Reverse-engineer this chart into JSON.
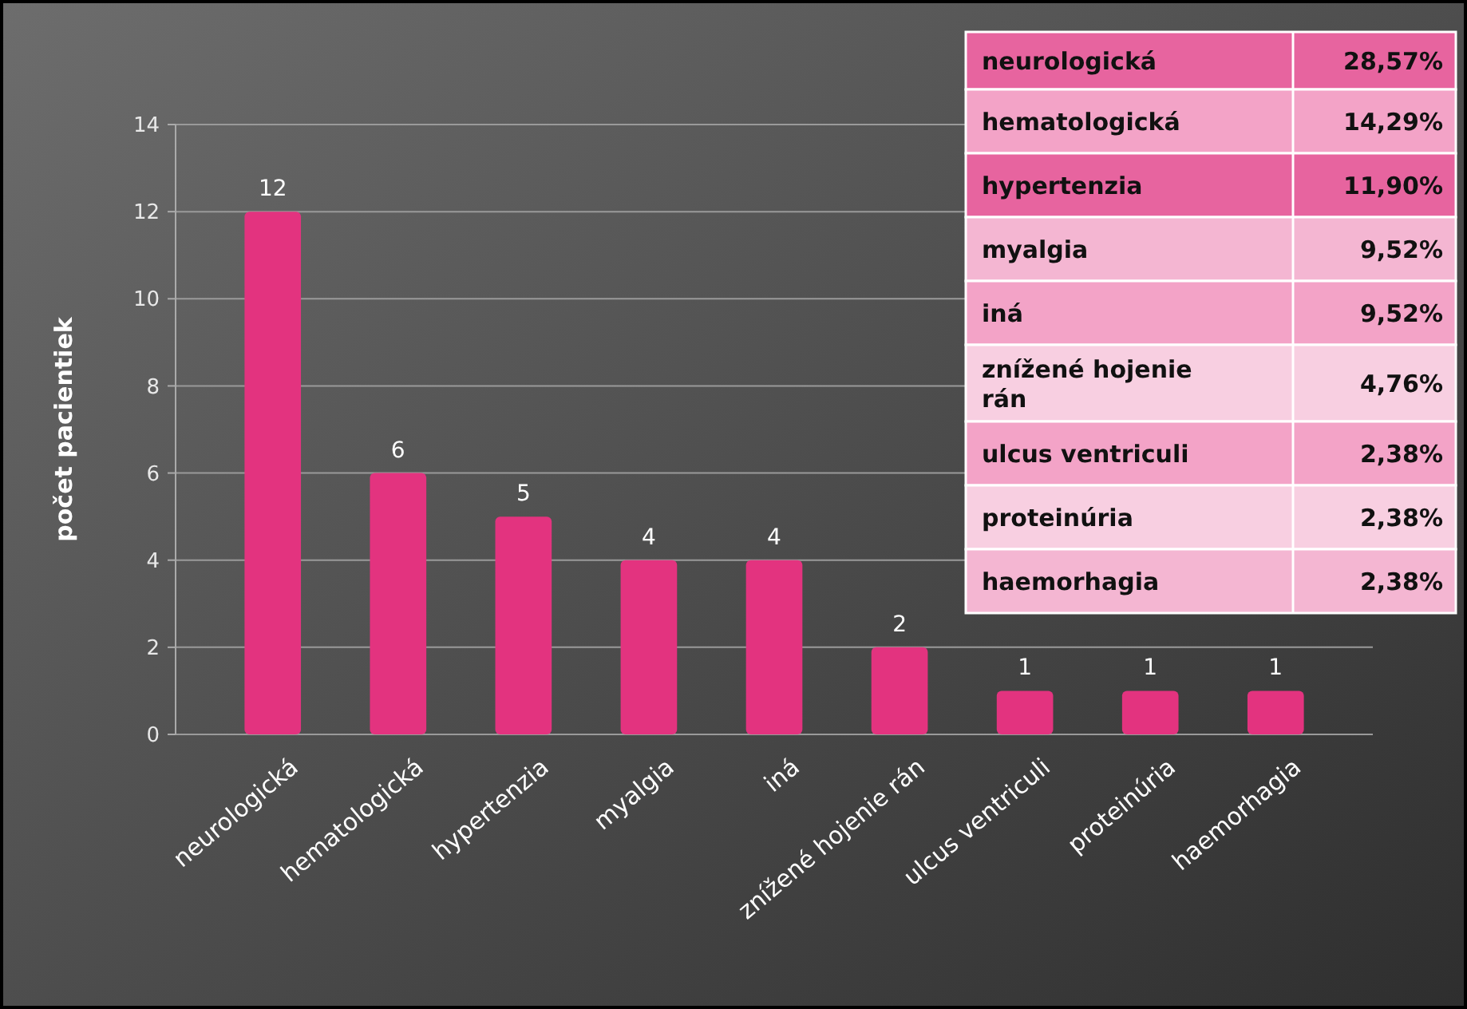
{
  "chart_data": [
    {
      "type": "bar",
      "ylabel": "počet pacientiek",
      "categories": [
        "neurologická",
        "hematologická",
        "hypertenzia",
        "myalgia",
        "iná",
        "znížené hojenie rán",
        "ulcus ventriculi",
        "proteinúria",
        "haemorhagia"
      ],
      "values": [
        12,
        6,
        5,
        4,
        4,
        2,
        1,
        1,
        1
      ],
      "color": "#e3337f",
      "ylim": [
        0,
        14
      ],
      "yticks": [
        0,
        2,
        4,
        6,
        8,
        10,
        12,
        14
      ],
      "grid": "y",
      "data_labels": true
    },
    {
      "type": "other",
      "categories": [
        "neurologická",
        "hematologická",
        "hypertenzia",
        "myalgia",
        "iná",
        "znížené hojenie rán",
        "ulcus ventriculi",
        "proteinúria",
        "haemorhagia"
      ],
      "value_labels": [
        "28,57%",
        "14,29%",
        "11,90%",
        "9,52%",
        "9,52%",
        "4,76%",
        "2,38%",
        "2,38%",
        "2,38%"
      ],
      "colors": [
        "#e7649f",
        "#f3a3c7",
        "#e7649f",
        "#f4b6d2",
        "#f3a3c7",
        "#f8cfe1",
        "#f3a3c7",
        "#f8cfe1",
        "#f4b6d2"
      ]
    }
  ]
}
